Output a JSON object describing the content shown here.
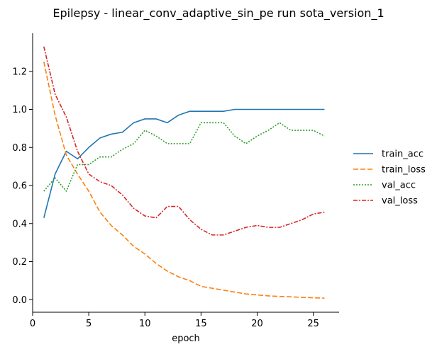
{
  "chart_data": {
    "type": "line",
    "title": "Epilepsy - linear_conv_adaptive_sin_pe run sota_version_1",
    "xlabel": "epoch",
    "ylabel": "",
    "xlim": [
      0.0,
      27.3
    ],
    "ylim": [
      -0.066,
      1.4
    ],
    "xticks": [
      0,
      5,
      10,
      15,
      20,
      25
    ],
    "yticks": [
      0.0,
      0.2,
      0.4,
      0.6,
      0.8,
      1.0,
      1.2
    ],
    "grid": false,
    "legend_position": "right",
    "x": [
      1,
      2,
      3,
      4,
      5,
      6,
      7,
      8,
      9,
      10,
      11,
      12,
      13,
      14,
      15,
      16,
      17,
      18,
      19,
      20,
      21,
      22,
      23,
      24,
      25,
      26
    ],
    "series": [
      {
        "name": "train_acc",
        "color": "#1f77b4",
        "dash": "solid",
        "values": [
          0.43,
          0.66,
          0.78,
          0.74,
          0.8,
          0.85,
          0.87,
          0.88,
          0.93,
          0.95,
          0.95,
          0.93,
          0.97,
          0.99,
          0.99,
          0.99,
          0.99,
          1.0,
          1.0,
          1.0,
          1.0,
          1.0,
          1.0,
          1.0,
          1.0,
          1.0
        ]
      },
      {
        "name": "train_loss",
        "color": "#ff7f0e",
        "dash": "dashed",
        "values": [
          1.25,
          0.97,
          0.76,
          0.66,
          0.57,
          0.46,
          0.39,
          0.34,
          0.28,
          0.24,
          0.19,
          0.15,
          0.12,
          0.1,
          0.07,
          0.06,
          0.05,
          0.04,
          0.03,
          0.025,
          0.02,
          0.017,
          0.015,
          0.012,
          0.01,
          0.008
        ]
      },
      {
        "name": "val_acc",
        "color": "#2ca02c",
        "dash": "dotted",
        "values": [
          0.57,
          0.64,
          0.57,
          0.71,
          0.71,
          0.75,
          0.75,
          0.79,
          0.82,
          0.89,
          0.86,
          0.82,
          0.82,
          0.82,
          0.93,
          0.93,
          0.93,
          0.86,
          0.82,
          0.86,
          0.89,
          0.93,
          0.89,
          0.89,
          0.89,
          0.86
        ]
      },
      {
        "name": "val_loss",
        "color": "#d62728",
        "dash": "dashdot",
        "values": [
          1.33,
          1.08,
          0.96,
          0.78,
          0.66,
          0.62,
          0.6,
          0.55,
          0.48,
          0.44,
          0.43,
          0.49,
          0.49,
          0.42,
          0.37,
          0.34,
          0.34,
          0.36,
          0.38,
          0.39,
          0.38,
          0.38,
          0.4,
          0.42,
          0.45,
          0.46
        ]
      }
    ]
  }
}
